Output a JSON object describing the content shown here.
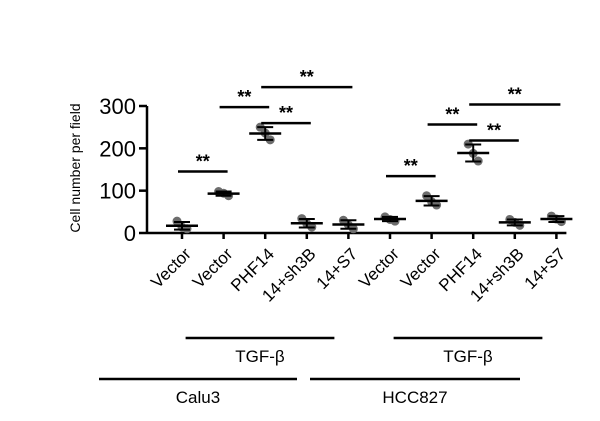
{
  "chart_data": {
    "type": "scatter",
    "ylabel": "Cell number per field",
    "xlabel": "",
    "ylim": [
      0,
      300
    ],
    "yticks": [
      0,
      100,
      200,
      300
    ],
    "categories": [
      "Vector",
      "Vector",
      "PHF14",
      "14+sh3B",
      "14+S7",
      "Vector",
      "Vector",
      "PHF14",
      "14+sh3B",
      "14+S7"
    ],
    "groups": [
      {
        "label": "Calu3",
        "treatment": "TGF-β",
        "values": [
          {
            "points": [
              28,
              14,
              10
            ],
            "mean": 17,
            "sd": 9
          },
          {
            "points": [
              98,
              94,
              88
            ],
            "mean": 93,
            "sd": 5
          },
          {
            "points": [
              250,
              236,
              220
            ],
            "mean": 235,
            "sd": 15
          },
          {
            "points": [
              34,
              22,
              14
            ],
            "mean": 23,
            "sd": 10
          },
          {
            "points": [
              30,
              19,
              10
            ],
            "mean": 20,
            "sd": 10
          }
        ]
      },
      {
        "label": "HCC827",
        "treatment": "TGF-β",
        "values": [
          {
            "points": [
              38,
              32,
              28
            ],
            "mean": 33,
            "sd": 5
          },
          {
            "points": [
              88,
              74,
              66
            ],
            "mean": 76,
            "sd": 11
          },
          {
            "points": [
              210,
              188,
              170
            ],
            "mean": 189,
            "sd": 20
          },
          {
            "points": [
              32,
              25,
              18
            ],
            "mean": 25,
            "sd": 7
          },
          {
            "points": [
              40,
              33,
              27
            ],
            "mean": 33,
            "sd": 7
          }
        ]
      }
    ],
    "significance": [
      {
        "from": 0,
        "to": 1,
        "label": "**",
        "level": 0
      },
      {
        "from": 1,
        "to": 2,
        "label": "**",
        "level": 0
      },
      {
        "from": 2,
        "to": 3,
        "label": "**",
        "level": 0
      },
      {
        "from": 2,
        "to": 4,
        "label": "**",
        "level": 1
      },
      {
        "from": 5,
        "to": 6,
        "label": "**",
        "level": 0
      },
      {
        "from": 6,
        "to": 7,
        "label": "**",
        "level": 0
      },
      {
        "from": 7,
        "to": 8,
        "label": "**",
        "level": 0
      },
      {
        "from": 7,
        "to": 9,
        "label": "**",
        "level": 1
      }
    ],
    "point_color": "#6d6d6d",
    "line_color": "#000000"
  }
}
